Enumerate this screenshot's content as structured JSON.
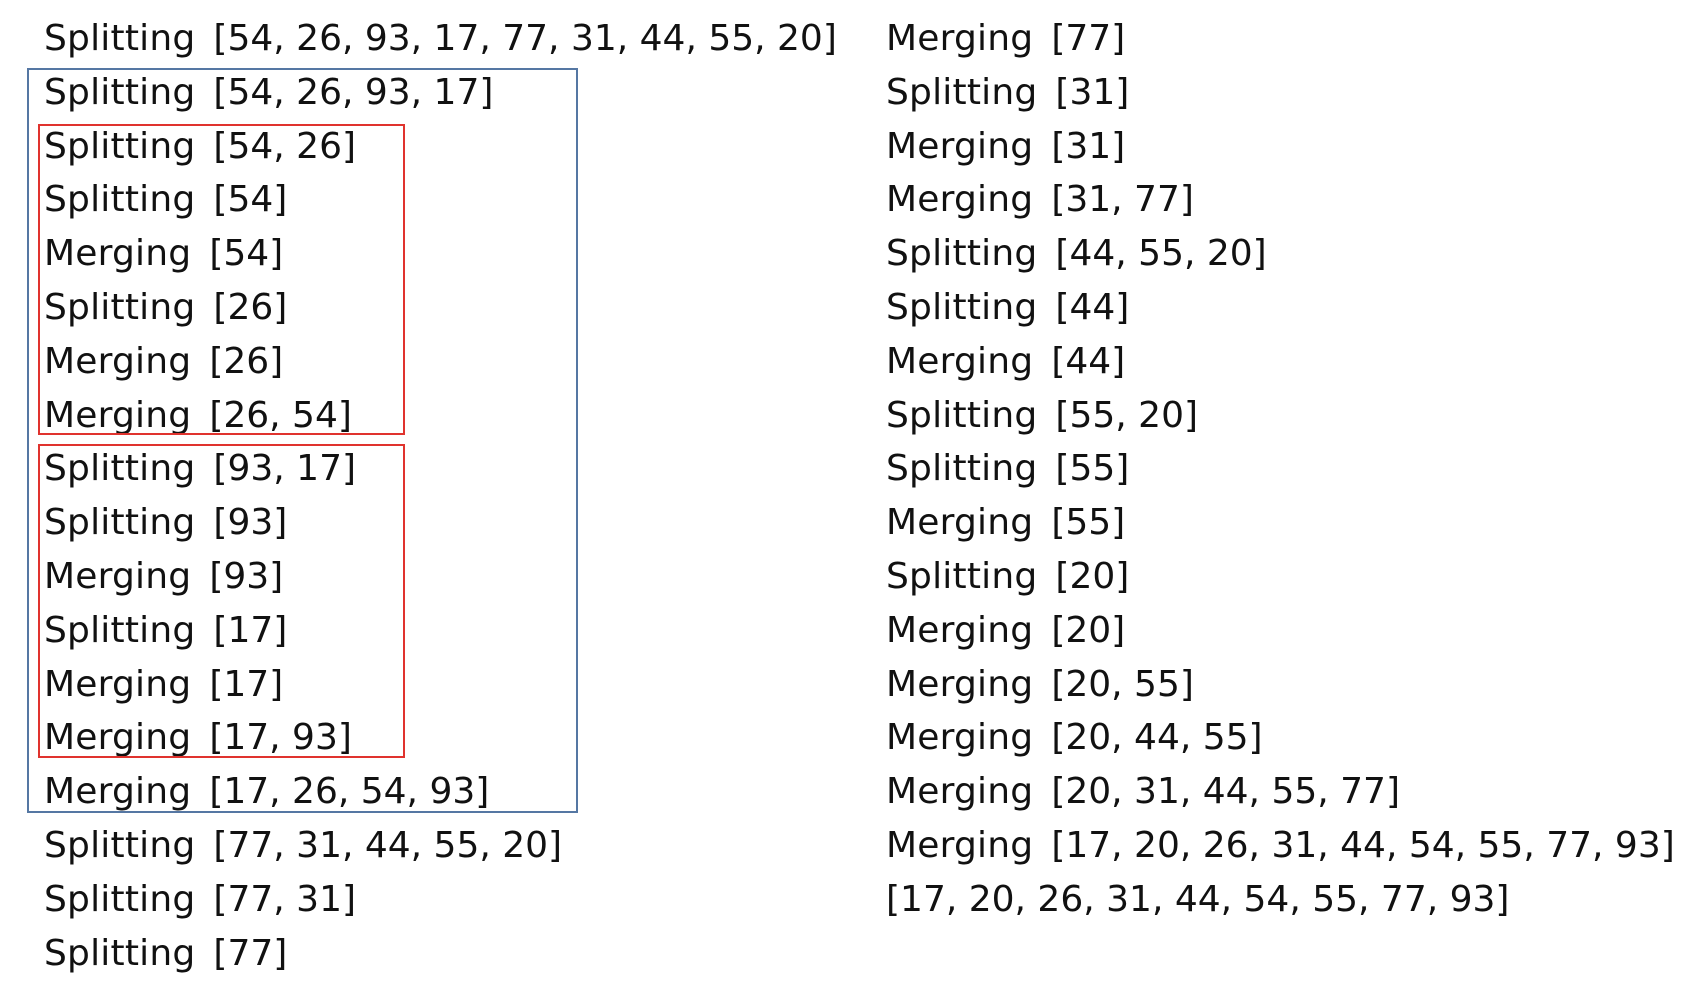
{
  "colors": {
    "outer_frame": "#5577a3",
    "inner_frames": "#e0332e",
    "text": "#111111"
  },
  "left_column": [
    {
      "op": "Splitting",
      "list": "[54, 26, 93, 17, 77, 31, 44, 55, 20]"
    },
    {
      "op": "Splitting",
      "list": "[54, 26, 93, 17]"
    },
    {
      "op": "Splitting",
      "list": "[54, 26]"
    },
    {
      "op": "Splitting",
      "list": "[54]"
    },
    {
      "op": "Merging",
      "list": "[54]"
    },
    {
      "op": "Splitting",
      "list": "[26]"
    },
    {
      "op": "Merging",
      "list": "[26]"
    },
    {
      "op": "Merging",
      "list": "[26, 54]"
    },
    {
      "op": "Splitting",
      "list": "[93, 17]"
    },
    {
      "op": "Splitting",
      "list": "[93]"
    },
    {
      "op": "Merging",
      "list": "[93]"
    },
    {
      "op": "Splitting",
      "list": "[17]"
    },
    {
      "op": "Merging",
      "list": "[17]"
    },
    {
      "op": "Merging",
      "list": "[17, 93]"
    },
    {
      "op": "Merging",
      "list": "[17, 26, 54, 93]"
    },
    {
      "op": "Splitting",
      "list": "[77, 31, 44, 55, 20]"
    },
    {
      "op": "Splitting",
      "list": "[77, 31]"
    },
    {
      "op": "Splitting",
      "list": "[77]"
    }
  ],
  "right_column": [
    {
      "op": "Merging",
      "list": "[77]"
    },
    {
      "op": "Splitting",
      "list": "[31]"
    },
    {
      "op": "Merging",
      "list": "[31]"
    },
    {
      "op": "Merging",
      "list": "[31, 77]"
    },
    {
      "op": "Splitting",
      "list": "[44, 55, 20]"
    },
    {
      "op": "Splitting",
      "list": "[44]"
    },
    {
      "op": "Merging",
      "list": "[44]"
    },
    {
      "op": "Splitting",
      "list": "[55, 20]"
    },
    {
      "op": "Splitting",
      "list": "[55]"
    },
    {
      "op": "Merging",
      "list": "[55]"
    },
    {
      "op": "Splitting",
      "list": "[20]"
    },
    {
      "op": "Merging",
      "list": "[20]"
    },
    {
      "op": "Merging",
      "list": "[20, 55]"
    },
    {
      "op": "Merging",
      "list": "[20, 44, 55]"
    },
    {
      "op": "Merging",
      "list": "[20, 31, 44, 55, 77]"
    },
    {
      "op": "Merging",
      "list": "[17, 20, 26, 31, 44, 54, 55, 77, 93]"
    },
    {
      "op": "",
      "list": "[17, 20, 26, 31, 44, 54, 55, 77, 93]"
    }
  ]
}
